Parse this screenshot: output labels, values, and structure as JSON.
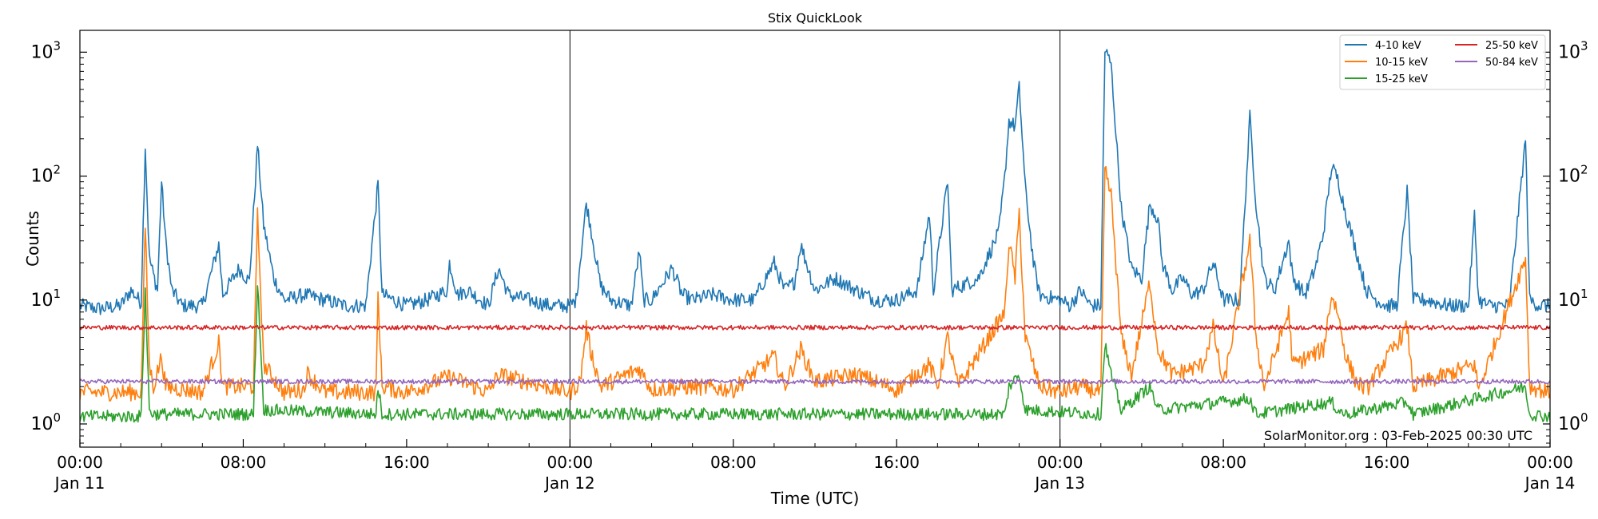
{
  "chart_data": {
    "type": "line",
    "title": "Stix QuickLook",
    "xlabel": "Time (UTC)",
    "ylabel": "Counts",
    "yscale": "log",
    "ylim": [
      0.65,
      1500
    ],
    "y_ticks": [
      {
        "value": 1,
        "label": "10",
        "exp": "0"
      },
      {
        "value": 10,
        "label": "10",
        "exp": "1"
      },
      {
        "value": 100,
        "label": "10",
        "exp": "2"
      },
      {
        "value": 1000,
        "label": "10",
        "exp": "3"
      }
    ],
    "x_unit": "hours since Jan 11 00:00 UTC",
    "xlim": [
      0,
      72
    ],
    "x_ticks": [
      {
        "hour": 0,
        "time": "00:00",
        "date": "Jan 11"
      },
      {
        "hour": 8,
        "time": "08:00",
        "date": ""
      },
      {
        "hour": 16,
        "time": "16:00",
        "date": ""
      },
      {
        "hour": 24,
        "time": "00:00",
        "date": "Jan 12"
      },
      {
        "hour": 32,
        "time": "08:00",
        "date": ""
      },
      {
        "hour": 40,
        "time": "16:00",
        "date": ""
      },
      {
        "hour": 48,
        "time": "00:00",
        "date": "Jan 13"
      },
      {
        "hour": 56,
        "time": "08:00",
        "date": ""
      },
      {
        "hour": 64,
        "time": "16:00",
        "date": ""
      },
      {
        "hour": 72,
        "time": "00:00",
        "date": "Jan 14"
      }
    ],
    "day_boundaries": [
      24,
      48
    ],
    "legend": {
      "placement": "top-right",
      "columns": 2
    },
    "footer_text": "SolarMonitor.org : 03-Feb-2025 00:30 UTC",
    "series": [
      {
        "name": "4-10 keV",
        "color": "#1f77b4",
        "points": [
          [
            0,
            9
          ],
          [
            1,
            8.5
          ],
          [
            2,
            9
          ],
          [
            2.5,
            12
          ],
          [
            3,
            9.5
          ],
          [
            3.2,
            175
          ],
          [
            3.4,
            22
          ],
          [
            3.6,
            16
          ],
          [
            3.8,
            12
          ],
          [
            4,
            90
          ],
          [
            4.2,
            30
          ],
          [
            4.5,
            12
          ],
          [
            5,
            9
          ],
          [
            6,
            9
          ],
          [
            6.8,
            28
          ],
          [
            7,
            11
          ],
          [
            7.8,
            18
          ],
          [
            8.3,
            14
          ],
          [
            8.7,
            180
          ],
          [
            9,
            40
          ],
          [
            9.5,
            15
          ],
          [
            10,
            10
          ],
          [
            11,
            11
          ],
          [
            12,
            10
          ],
          [
            13,
            9
          ],
          [
            14,
            9
          ],
          [
            14.6,
            85
          ],
          [
            14.8,
            11
          ],
          [
            16,
            9
          ],
          [
            17,
            10
          ],
          [
            18,
            12
          ],
          [
            18.1,
            20
          ],
          [
            18.5,
            11
          ],
          [
            19,
            12
          ],
          [
            20,
            9
          ],
          [
            20.5,
            18
          ],
          [
            21,
            11
          ],
          [
            22,
            10
          ],
          [
            23,
            9
          ],
          [
            24,
            9
          ],
          [
            24.3,
            10
          ],
          [
            24.8,
            60
          ],
          [
            25,
            40
          ],
          [
            25.5,
            13
          ],
          [
            26,
            10
          ],
          [
            27,
            9
          ],
          [
            27.4,
            25
          ],
          [
            27.6,
            10
          ],
          [
            28,
            10
          ],
          [
            29,
            18
          ],
          [
            29.5,
            11
          ],
          [
            30,
            10
          ],
          [
            31,
            11
          ],
          [
            32,
            10
          ],
          [
            33,
            10
          ],
          [
            34,
            20
          ],
          [
            34.5,
            12
          ],
          [
            35,
            14
          ],
          [
            35.3,
            28
          ],
          [
            36,
            12
          ],
          [
            37,
            15
          ],
          [
            38,
            12
          ],
          [
            39,
            10
          ],
          [
            40,
            10
          ],
          [
            41,
            12
          ],
          [
            41.6,
            50
          ],
          [
            41.8,
            12
          ],
          [
            42.5,
            92
          ],
          [
            42.7,
            12
          ],
          [
            44,
            15
          ],
          [
            45,
            35
          ],
          [
            45.3,
            100
          ],
          [
            45.5,
            280
          ],
          [
            45.8,
            250
          ],
          [
            46,
            520
          ],
          [
            46.3,
            80
          ],
          [
            46.7,
            20
          ],
          [
            47,
            11
          ],
          [
            48,
            10
          ],
          [
            48.5,
            9
          ],
          [
            49,
            12
          ],
          [
            49.5,
            9
          ],
          [
            50,
            9
          ],
          [
            50.2,
            1050
          ],
          [
            50.5,
            800
          ],
          [
            51,
            55
          ],
          [
            51.5,
            18
          ],
          [
            52,
            15
          ],
          [
            52.4,
            60
          ],
          [
            52.8,
            45
          ],
          [
            53,
            20
          ],
          [
            53.5,
            12
          ],
          [
            54,
            15
          ],
          [
            54.5,
            11
          ],
          [
            55,
            12
          ],
          [
            55.5,
            20
          ],
          [
            56,
            10
          ],
          [
            56.8,
            10
          ],
          [
            57.3,
            300
          ],
          [
            57.6,
            60
          ],
          [
            58,
            15
          ],
          [
            58.5,
            12
          ],
          [
            59.2,
            30
          ],
          [
            59.4,
            15
          ],
          [
            60,
            11
          ],
          [
            60.5,
            18
          ],
          [
            60.9,
            35
          ],
          [
            61.3,
            120
          ],
          [
            61.6,
            95
          ],
          [
            62,
            50
          ],
          [
            62.5,
            25
          ],
          [
            63,
            12
          ],
          [
            63.5,
            10
          ],
          [
            64,
            9
          ],
          [
            64.5,
            9
          ],
          [
            65,
            75
          ],
          [
            65.3,
            10
          ],
          [
            66,
            10
          ],
          [
            67,
            9
          ],
          [
            68,
            9
          ],
          [
            68.3,
            48
          ],
          [
            68.5,
            10
          ],
          [
            69,
            9
          ],
          [
            70,
            9
          ],
          [
            70.8,
            200
          ],
          [
            71,
            10
          ],
          [
            71.5,
            9
          ],
          [
            72,
            9
          ]
        ]
      },
      {
        "name": "10-15 keV",
        "color": "#ff7f0e",
        "points": [
          [
            0,
            1.8
          ],
          [
            3,
            1.8
          ],
          [
            3.2,
            40
          ],
          [
            3.4,
            3
          ],
          [
            3.6,
            2
          ],
          [
            4,
            3.5
          ],
          [
            4.2,
            2
          ],
          [
            6,
            1.8
          ],
          [
            6.8,
            4.5
          ],
          [
            7,
            2
          ],
          [
            8.5,
            2
          ],
          [
            8.7,
            48
          ],
          [
            9,
            3
          ],
          [
            10,
            1.8
          ],
          [
            11,
            1.9
          ],
          [
            11.1,
            2.6
          ],
          [
            12,
            1.8
          ],
          [
            14.5,
            1.8
          ],
          [
            14.6,
            11
          ],
          [
            14.8,
            2
          ],
          [
            16,
            1.8
          ],
          [
            18.1,
            2.4
          ],
          [
            20,
            1.8
          ],
          [
            20.5,
            2.5
          ],
          [
            24,
            1.8
          ],
          [
            24.5,
            2.2
          ],
          [
            24.8,
            6
          ],
          [
            25,
            4
          ],
          [
            25.5,
            2
          ],
          [
            27.4,
            2.8
          ],
          [
            28,
            1.9
          ],
          [
            30,
            2
          ],
          [
            32,
            1.9
          ],
          [
            34,
            3.5
          ],
          [
            34.5,
            2
          ],
          [
            35.3,
            4
          ],
          [
            36,
            2.2
          ],
          [
            38,
            2.5
          ],
          [
            40,
            1.9
          ],
          [
            41.6,
            3
          ],
          [
            42,
            2
          ],
          [
            42.5,
            5
          ],
          [
            43,
            2
          ],
          [
            45.3,
            8
          ],
          [
            45.5,
            30
          ],
          [
            45.8,
            15
          ],
          [
            46,
            50
          ],
          [
            46.3,
            5
          ],
          [
            47,
            2
          ],
          [
            48,
            1.8
          ],
          [
            49,
            2
          ],
          [
            50,
            1.8
          ],
          [
            50.2,
            110
          ],
          [
            50.5,
            70
          ],
          [
            51,
            5
          ],
          [
            51.5,
            2.5
          ],
          [
            52.4,
            14
          ],
          [
            52.8,
            4
          ],
          [
            53.5,
            2.5
          ],
          [
            55,
            3
          ],
          [
            55.5,
            6
          ],
          [
            56,
            2
          ],
          [
            57.3,
            30
          ],
          [
            57.6,
            5
          ],
          [
            58,
            2
          ],
          [
            59.2,
            8
          ],
          [
            59.4,
            3
          ],
          [
            60.9,
            4
          ],
          [
            61.3,
            11
          ],
          [
            61.6,
            8
          ],
          [
            62,
            3.5
          ],
          [
            62.5,
            2.2
          ],
          [
            63,
            1.9
          ],
          [
            65,
            6
          ],
          [
            65.3,
            2
          ],
          [
            68.3,
            3
          ],
          [
            68.5,
            1.9
          ],
          [
            70.8,
            22
          ],
          [
            71,
            2
          ],
          [
            72,
            1.8
          ]
        ]
      },
      {
        "name": "15-25 keV",
        "color": "#2ca02c",
        "points": [
          [
            0,
            1.15
          ],
          [
            3,
            1.15
          ],
          [
            3.2,
            12
          ],
          [
            3.4,
            1.3
          ],
          [
            3.6,
            1.2
          ],
          [
            8.5,
            1.2
          ],
          [
            8.7,
            14
          ],
          [
            9,
            1.3
          ],
          [
            14.5,
            1.2
          ],
          [
            14.6,
            2
          ],
          [
            14.8,
            1.2
          ],
          [
            24,
            1.2
          ],
          [
            45.3,
            1.2
          ],
          [
            45.5,
            2
          ],
          [
            46,
            2.5
          ],
          [
            46.3,
            1.3
          ],
          [
            50,
            1.2
          ],
          [
            50.2,
            4.5
          ],
          [
            50.5,
            2.5
          ],
          [
            51,
            1.3
          ],
          [
            52.4,
            2
          ],
          [
            52.8,
            1.3
          ],
          [
            57.3,
            1.6
          ],
          [
            57.6,
            1.2
          ],
          [
            61.3,
            1.5
          ],
          [
            61.6,
            1.3
          ],
          [
            62,
            1.2
          ],
          [
            65,
            1.5
          ],
          [
            65.3,
            1.2
          ],
          [
            70.8,
            2
          ],
          [
            71,
            1.2
          ],
          [
            72,
            1.15
          ]
        ]
      },
      {
        "name": "25-50 keV",
        "color": "#d62728",
        "points": [
          [
            0,
            6
          ],
          [
            72,
            6
          ]
        ]
      },
      {
        "name": "50-84 keV",
        "color": "#9467bd",
        "points": [
          [
            0,
            2.2
          ],
          [
            72,
            2.2
          ]
        ]
      }
    ]
  }
}
